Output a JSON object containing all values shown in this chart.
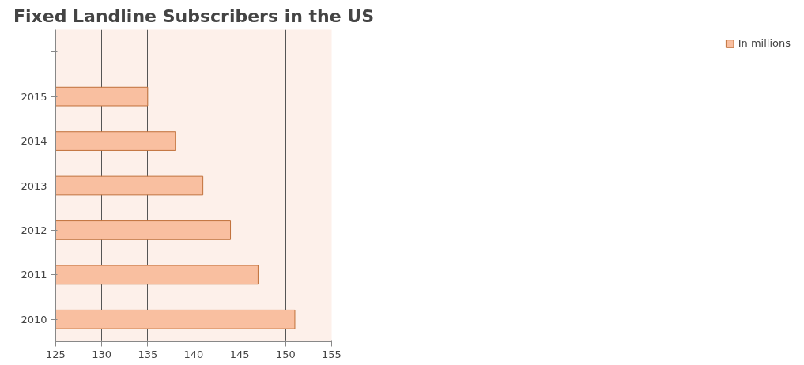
{
  "chart_data": {
    "type": "bar",
    "orientation": "horizontal",
    "title": "Fixed Landline Subscribers in the US",
    "categories": [
      null,
      "2015",
      "2014",
      "2013",
      "2012",
      "2011",
      "2010"
    ],
    "series": [
      {
        "name": "In millions",
        "color": "#f9bfa0",
        "values": [
          null,
          135,
          138,
          141,
          144,
          147,
          151
        ]
      }
    ],
    "xlim": [
      125,
      155
    ],
    "xticks": [
      125,
      130,
      135,
      140,
      145,
      150,
      155
    ],
    "grid": "x",
    "legend": "right"
  }
}
